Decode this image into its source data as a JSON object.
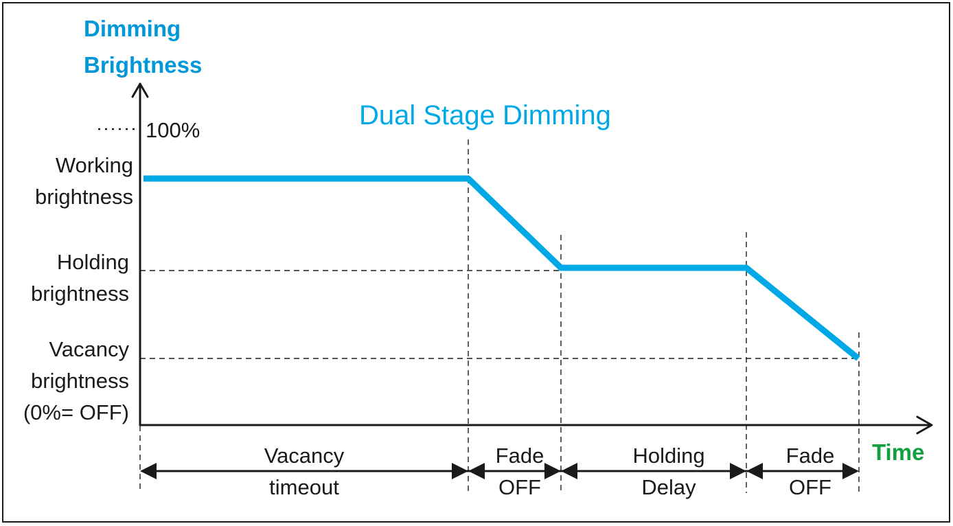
{
  "title": "Dual Stage Dimming",
  "y_axis_title": [
    "Dimming",
    "Brightness"
  ],
  "x_axis_title": "Time",
  "hundred_label": "100%",
  "levels": {
    "working": [
      "Working",
      "brightness"
    ],
    "holding": [
      "Holding",
      "brightness"
    ],
    "vacancy": [
      "Vacancy",
      "brightness",
      "(0%= OFF)"
    ]
  },
  "phases": [
    {
      "lines": [
        "Vacancy",
        "timeout"
      ]
    },
    {
      "lines": [
        "Fade",
        "OFF"
      ]
    },
    {
      "lines": [
        "Holding",
        "Delay"
      ]
    },
    {
      "lines": [
        "Fade",
        "OFF"
      ]
    }
  ],
  "colors": {
    "curve": "#00a8e6",
    "y_axis_title": "#0098d8",
    "x_axis_title": "#10a040"
  }
}
